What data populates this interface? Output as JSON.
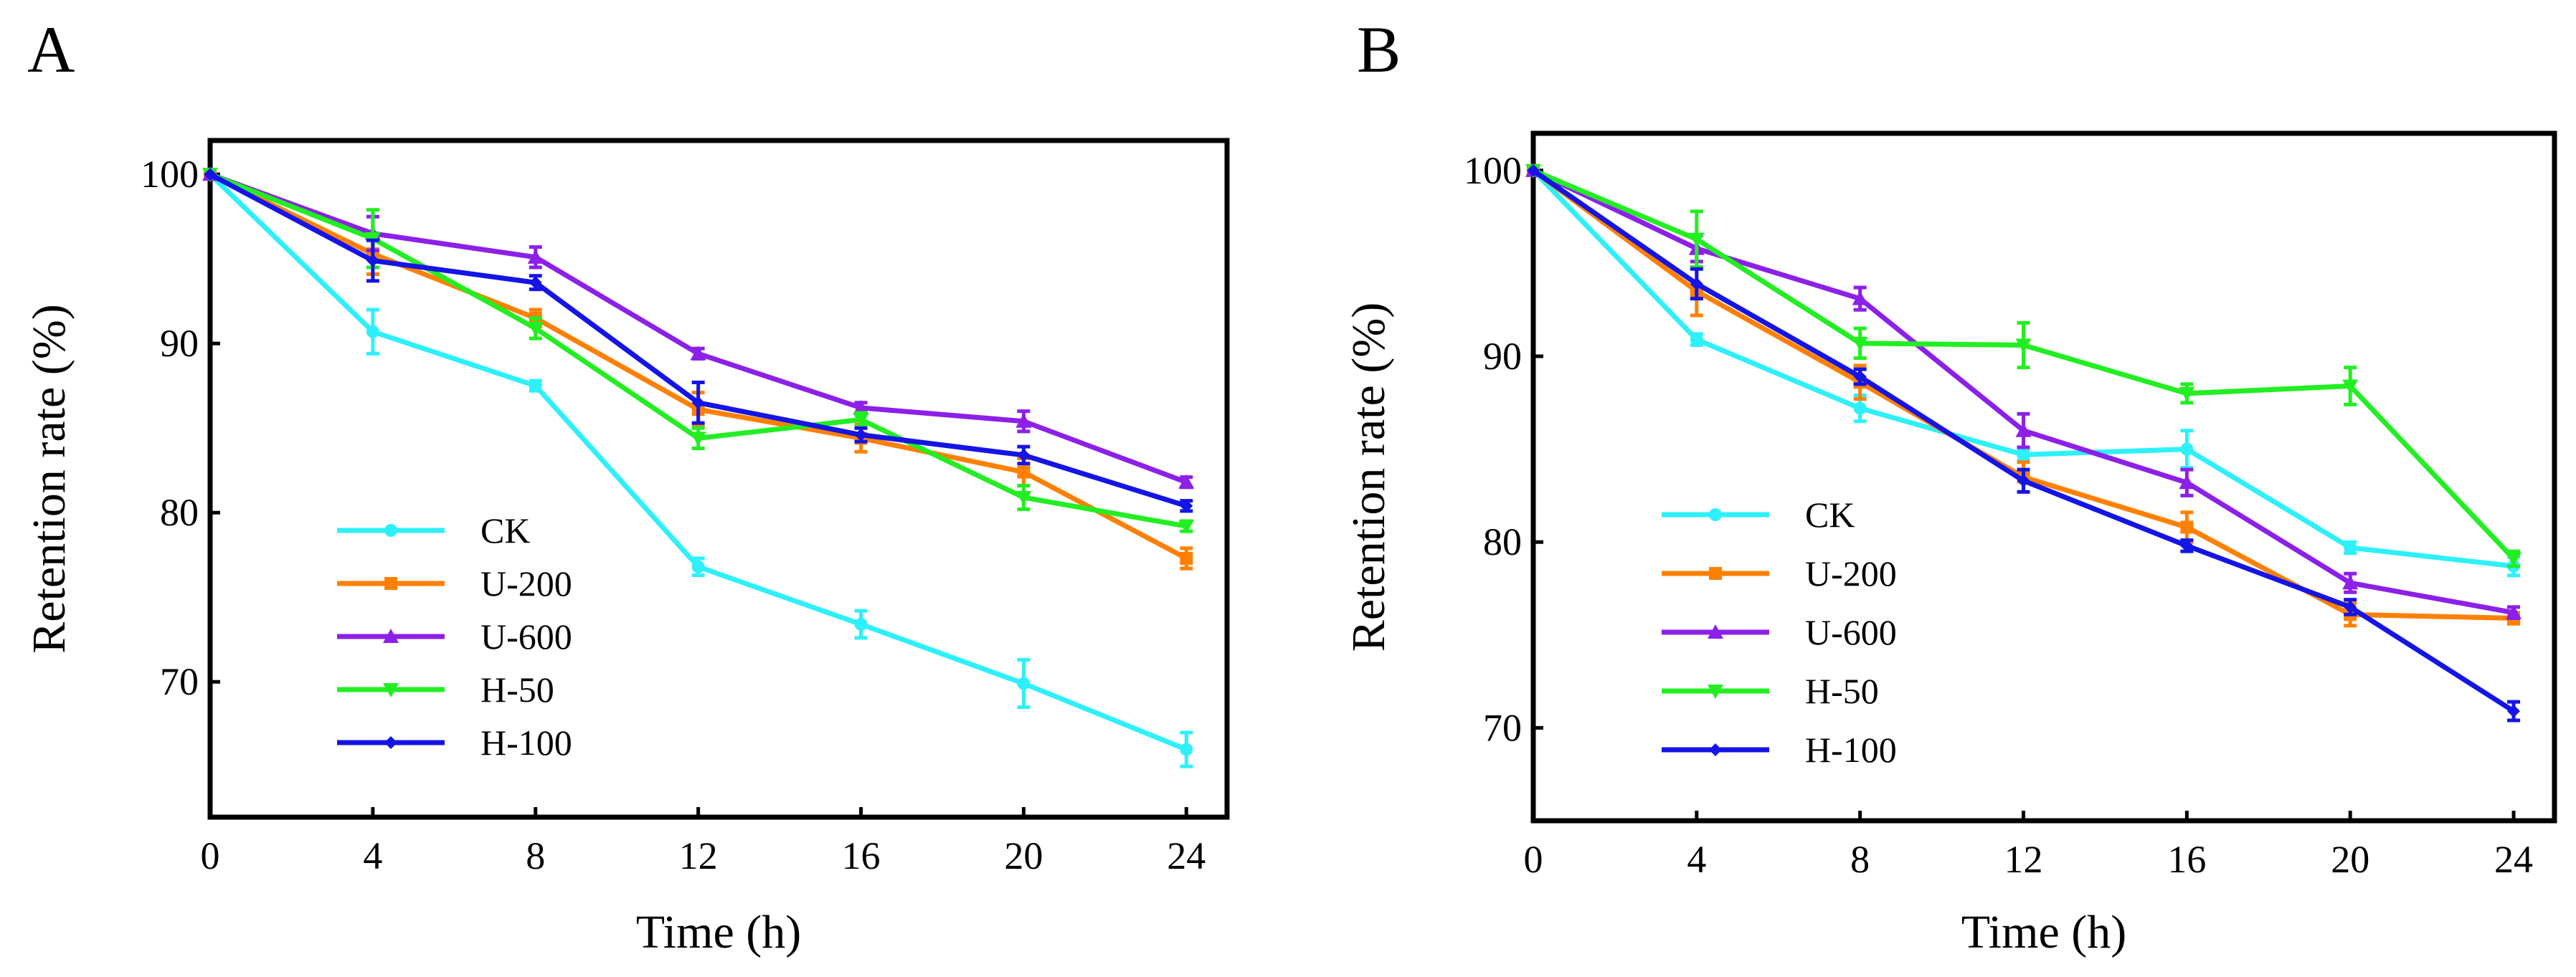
{
  "chart_data": [
    {
      "id": "A",
      "panel_label": "A",
      "type": "line",
      "xlabel": "Time (h)",
      "ylabel": "Retention rate (%)",
      "x": [
        0,
        4,
        8,
        12,
        16,
        20,
        24
      ],
      "xlim": [
        0,
        25
      ],
      "ylim": [
        62,
        102
      ],
      "xticks": [
        0,
        4,
        8,
        12,
        16,
        20,
        24
      ],
      "yticks": [
        70,
        80,
        90,
        100
      ],
      "legend_position": "lower-left",
      "series": [
        {
          "name": "CK",
          "color": "#2EF0FA",
          "marker": "circle",
          "values": [
            100,
            90.7,
            87.5,
            76.8,
            73.4,
            69.9,
            66.0
          ],
          "errors": [
            0,
            1.3,
            0.3,
            0.5,
            0.8,
            1.4,
            1.0
          ]
        },
        {
          "name": "U-200",
          "color": "#FF8000",
          "marker": "square",
          "values": [
            100,
            95.3,
            91.5,
            86.1,
            84.4,
            82.4,
            77.3
          ],
          "errors": [
            0,
            1.2,
            0.5,
            1.0,
            0.8,
            0.8,
            0.6
          ]
        },
        {
          "name": "U-600",
          "color": "#8C20E8",
          "marker": "triangle-up",
          "values": [
            100,
            96.5,
            95.1,
            89.4,
            86.2,
            85.4,
            81.8
          ],
          "errors": [
            0,
            1.0,
            0.6,
            0.3,
            0.3,
            0.6,
            0.3
          ]
        },
        {
          "name": "H-50",
          "color": "#22EE22",
          "marker": "triangle-down",
          "values": [
            100,
            96.2,
            90.9,
            84.4,
            85.5,
            80.9,
            79.2
          ],
          "errors": [
            0,
            1.7,
            0.6,
            0.6,
            0.4,
            0.7,
            0.3
          ]
        },
        {
          "name": "H-100",
          "color": "#1414E6",
          "marker": "diamond",
          "values": [
            100,
            94.9,
            93.6,
            86.5,
            84.6,
            83.4,
            80.4
          ],
          "errors": [
            0,
            1.2,
            0.4,
            1.2,
            0.4,
            0.5,
            0.3
          ]
        }
      ]
    },
    {
      "id": "B",
      "panel_label": "B",
      "type": "line",
      "xlabel": "Time (h)",
      "ylabel": "Retention rate (%)",
      "x": [
        0,
        4,
        8,
        12,
        16,
        20,
        24
      ],
      "xlim": [
        0,
        25
      ],
      "ylim": [
        65,
        102
      ],
      "xticks": [
        0,
        4,
        8,
        12,
        16,
        20,
        24
      ],
      "yticks": [
        70,
        80,
        90,
        100
      ],
      "legend_position": "lower-left",
      "series": [
        {
          "name": "CK",
          "color": "#2EF0FA",
          "marker": "circle",
          "values": [
            100,
            90.9,
            87.2,
            84.7,
            85.0,
            79.7,
            78.7
          ],
          "errors": [
            0,
            0.3,
            0.7,
            0.3,
            1.0,
            0.3,
            0.5
          ]
        },
        {
          "name": "U-200",
          "color": "#FF8000",
          "marker": "square",
          "values": [
            100,
            93.5,
            88.6,
            83.5,
            80.8,
            76.1,
            75.9
          ],
          "errors": [
            0,
            1.3,
            0.9,
            0.8,
            0.8,
            0.6,
            0.3
          ]
        },
        {
          "name": "U-600",
          "color": "#8C20E8",
          "marker": "triangle-up",
          "values": [
            100,
            95.8,
            93.1,
            86.0,
            83.2,
            77.8,
            76.2
          ],
          "errors": [
            0,
            0.7,
            0.6,
            0.9,
            0.7,
            0.5,
            0.3
          ]
        },
        {
          "name": "H-50",
          "color": "#22EE22",
          "marker": "triangle-down",
          "values": [
            100,
            96.3,
            90.7,
            90.6,
            88.0,
            88.4,
            79.1
          ],
          "errors": [
            0,
            1.5,
            0.8,
            1.2,
            0.5,
            1.0,
            0.4
          ]
        },
        {
          "name": "H-100",
          "color": "#1414E6",
          "marker": "diamond",
          "values": [
            100,
            93.9,
            88.9,
            83.3,
            79.8,
            76.5,
            70.9
          ],
          "errors": [
            0,
            0.8,
            0.4,
            0.6,
            0.3,
            0.4,
            0.5
          ]
        }
      ]
    }
  ]
}
